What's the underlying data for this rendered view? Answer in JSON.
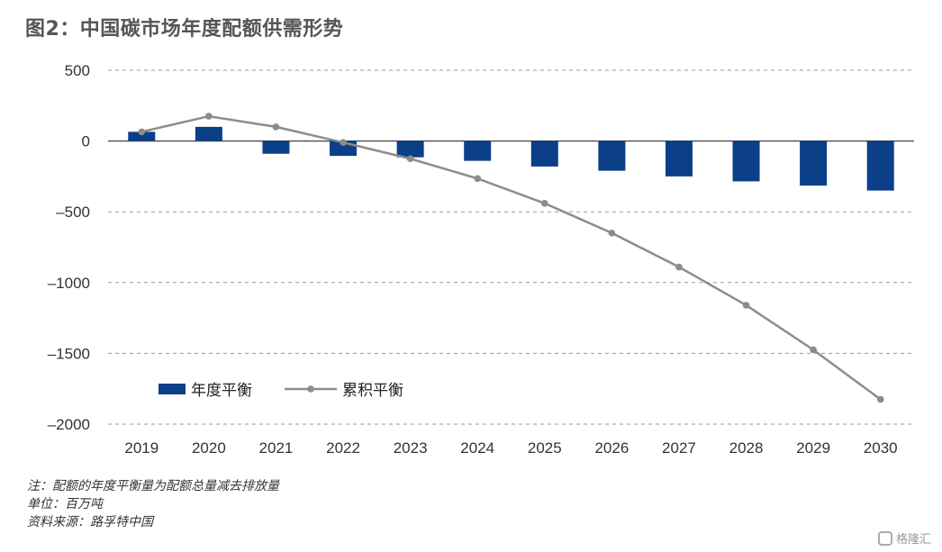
{
  "title": "图2：中国碳市场年度配额供需形势",
  "notes": {
    "note": "注：配额的年度平衡量为配额总量减去排放量",
    "unit": "单位：百万吨",
    "source": "资料来源：路孚特中国"
  },
  "watermark": "格隆汇",
  "colors": {
    "bar": "#0b3f87",
    "line": "#8c8c8c",
    "grid": "#9a9a9a"
  },
  "chart_data": {
    "type": "bar",
    "categories": [
      "2019",
      "2020",
      "2021",
      "2022",
      "2023",
      "2024",
      "2025",
      "2026",
      "2027",
      "2028",
      "2029",
      "2030"
    ],
    "series": [
      {
        "name": "年度平衡",
        "type": "bar",
        "values": [
          65,
          100,
          -90,
          -105,
          -115,
          -140,
          -180,
          -210,
          -250,
          -285,
          -315,
          -350
        ]
      },
      {
        "name": "累积平衡",
        "type": "line",
        "values": [
          65,
          175,
          100,
          -10,
          -125,
          -265,
          -440,
          -650,
          -890,
          -1160,
          -1475,
          -1825
        ]
      }
    ],
    "ylim": [
      -2000,
      500
    ],
    "yticks": [
      500,
      0,
      -500,
      -1000,
      -1500,
      -2000
    ],
    "ytick_labels": [
      "500",
      "0",
      "–500",
      "–1000",
      "–1500",
      "–2000"
    ],
    "grid": "dashed horizontal",
    "legend": "bottom-left"
  }
}
